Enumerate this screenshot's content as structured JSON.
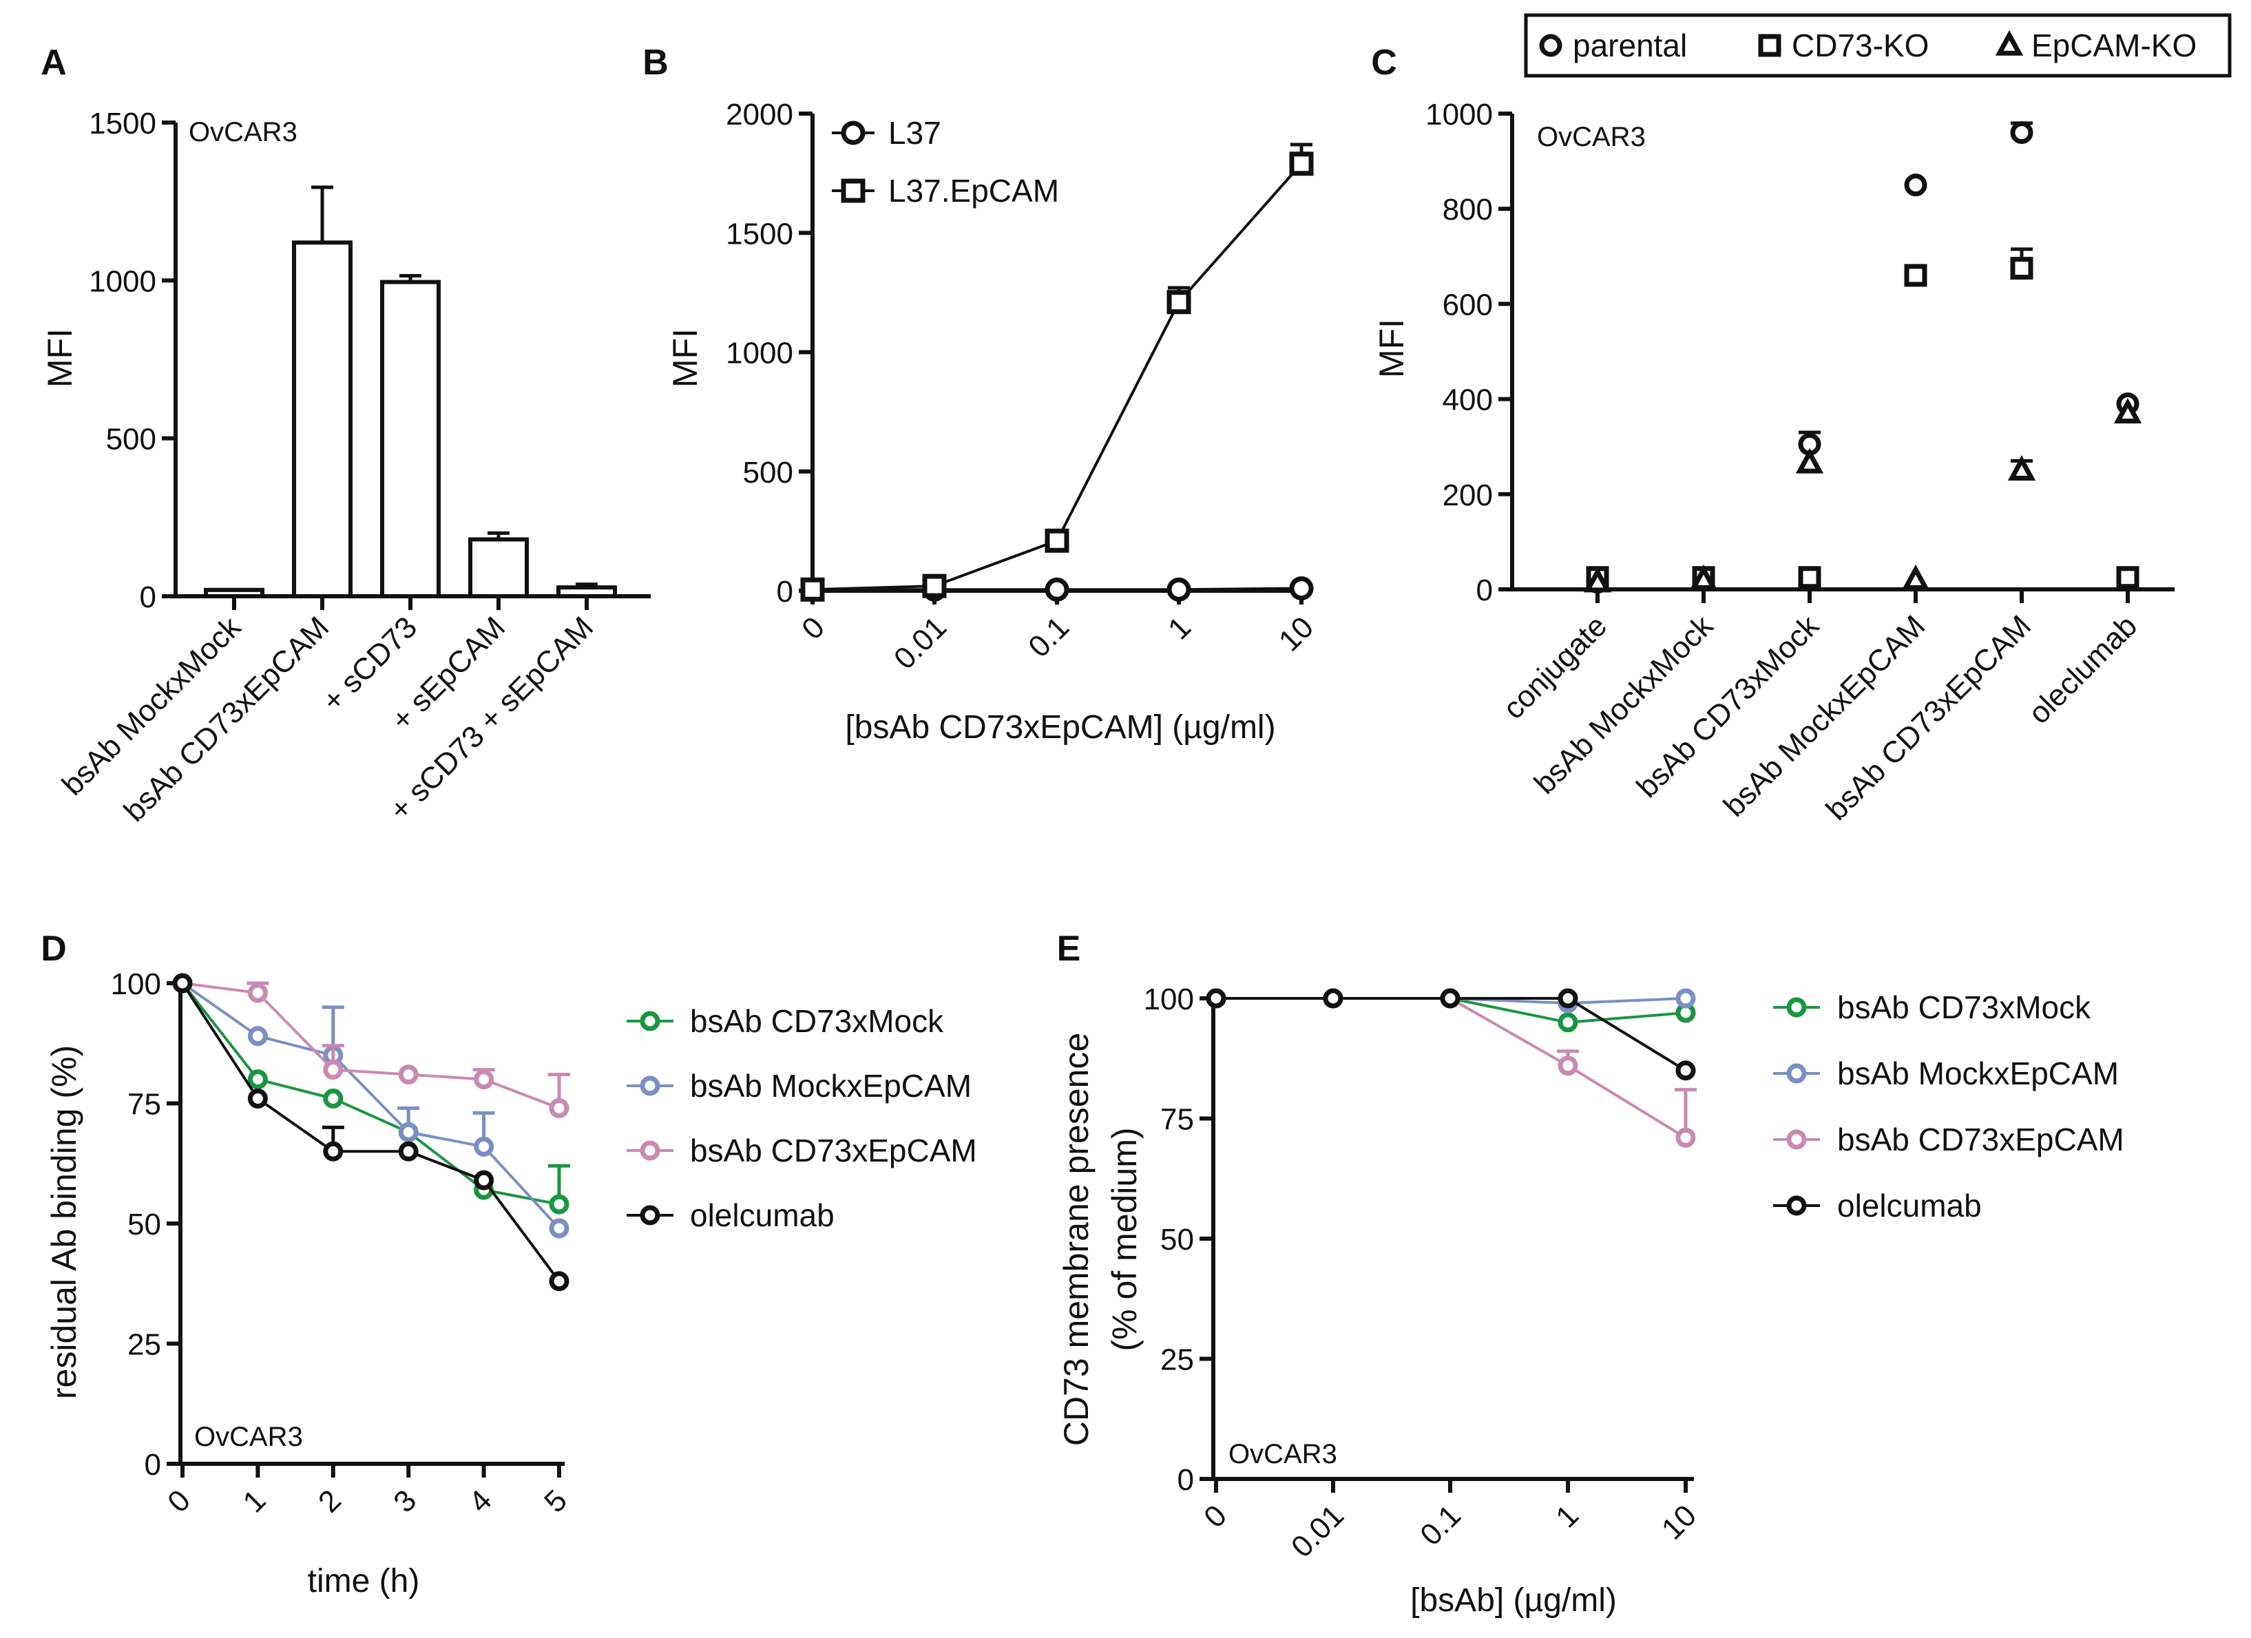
{
  "chart_data": [
    {
      "panel": "A",
      "type": "bar",
      "cell_line": "OvCAR3",
      "ylabel": "MFI",
      "ylim": [
        0,
        1500
      ],
      "yticks": [
        0,
        500,
        1000,
        1500
      ],
      "categories": [
        "bsAb MockxMock",
        "bsAb CD73xEpCAM",
        "+ sCD73",
        "+ sEpCAM",
        "+ sCD73 + sEpCAM"
      ],
      "values": [
        20,
        1120,
        995,
        180,
        28
      ],
      "errors": [
        0,
        175,
        20,
        20,
        10
      ]
    },
    {
      "panel": "B",
      "type": "line",
      "ylabel": "MFI",
      "xlabel": "[bsAb CD73xEpCAM] (µg/ml)",
      "ylim": [
        0,
        2000
      ],
      "yticks": [
        0,
        500,
        1000,
        1500,
        2000
      ],
      "categories": [
        "0",
        "0.01",
        "0.1",
        "1",
        "10"
      ],
      "series": [
        {
          "name": "L37",
          "marker": "circle",
          "values": [
            5,
            5,
            5,
            5,
            10
          ],
          "errors": [
            0,
            0,
            0,
            0,
            0
          ]
        },
        {
          "name": "L37.EpCAM",
          "marker": "square",
          "values": [
            5,
            20,
            210,
            1210,
            1790
          ],
          "errors": [
            0,
            0,
            0,
            60,
            80
          ]
        }
      ]
    },
    {
      "panel": "C",
      "type": "scatter",
      "cell_line": "OvCAR3",
      "ylabel": "MFI",
      "ylim": [
        0,
        1000
      ],
      "yticks": [
        0,
        200,
        400,
        600,
        800,
        1000
      ],
      "categories": [
        "conjugate",
        "bsAb MockxMock",
        "bsAb CD73xMock",
        "bsAb MockxEpCAM",
        "bsAb CD73xEpCAM",
        "oleclumab"
      ],
      "series": [
        {
          "name": "parental",
          "marker": "circle",
          "values": [
            15,
            20,
            305,
            850,
            960,
            390
          ],
          "errors": [
            0,
            0,
            25,
            0,
            20,
            0
          ]
        },
        {
          "name": "CD73-KO",
          "marker": "square",
          "values": [
            25,
            25,
            25,
            660,
            675,
            25
          ],
          "errors": [
            0,
            0,
            0,
            0,
            40,
            0
          ]
        },
        {
          "name": "EpCAM-KO",
          "marker": "triangle",
          "values": [
            15,
            20,
            265,
            20,
            250,
            370
          ],
          "errors": [
            0,
            0,
            0,
            0,
            20,
            0
          ]
        }
      ]
    },
    {
      "panel": "D",
      "type": "line",
      "cell_line": "OvCAR3",
      "ylabel": "residual Ab binding  (%)",
      "xlabel": "time (h)",
      "ylim": [
        0,
        100
      ],
      "yticks": [
        0,
        25,
        50,
        75,
        100
      ],
      "x": [
        0,
        1,
        2,
        3,
        4,
        5
      ],
      "series": [
        {
          "name": "bsAb CD73xMock",
          "color": "#1a9641",
          "values": [
            100,
            80,
            76,
            69,
            57,
            54
          ],
          "errors": [
            0,
            0,
            0,
            0,
            0,
            8
          ]
        },
        {
          "name": "bsAb MockxEpCAM",
          "color": "#7b8fc4",
          "values": [
            100,
            89,
            85,
            69,
            66,
            49
          ],
          "errors": [
            0,
            0,
            10,
            5,
            7,
            0
          ]
        },
        {
          "name": "bsAb CD73xEpCAM",
          "color": "#c98ab0",
          "values": [
            100,
            98,
            82,
            81,
            80,
            74
          ],
          "errors": [
            0,
            2,
            5,
            0,
            2,
            7
          ]
        },
        {
          "name": "olelcumab",
          "color": "#111111",
          "values": [
            100,
            76,
            65,
            65,
            59,
            38
          ],
          "errors": [
            0,
            0,
            5,
            0,
            0,
            0
          ]
        }
      ]
    },
    {
      "panel": "E",
      "type": "line",
      "cell_line": "OvCAR3",
      "ylabel_line1": "CD73 membrane presence",
      "ylabel_line2": "(% of medium)",
      "xlabel": "[bsAb] (µg/ml)",
      "ylim": [
        0,
        100
      ],
      "yticks": [
        0,
        25,
        50,
        75,
        100
      ],
      "categories": [
        "0",
        "0.01",
        "0.1",
        "1",
        "10"
      ],
      "series": [
        {
          "name": "bsAb CD73xMock",
          "color": "#1a9641",
          "values": [
            100,
            100,
            100,
            95,
            97
          ],
          "errors": [
            0,
            0,
            0,
            0,
            0
          ]
        },
        {
          "name": "bsAb MockxEpCAM",
          "color": "#7b8fc4",
          "values": [
            100,
            100,
            100,
            99,
            100
          ],
          "errors": [
            0,
            0,
            0,
            0,
            0
          ]
        },
        {
          "name": "bsAb CD73xEpCAM",
          "color": "#c98ab0",
          "values": [
            100,
            100,
            100,
            86,
            71
          ],
          "errors": [
            0,
            0,
            0,
            3,
            10
          ]
        },
        {
          "name": "olelcumab",
          "color": "#111111",
          "values": [
            100,
            100,
            100,
            100,
            85
          ],
          "errors": [
            0,
            0,
            0,
            0,
            0
          ]
        }
      ]
    }
  ]
}
